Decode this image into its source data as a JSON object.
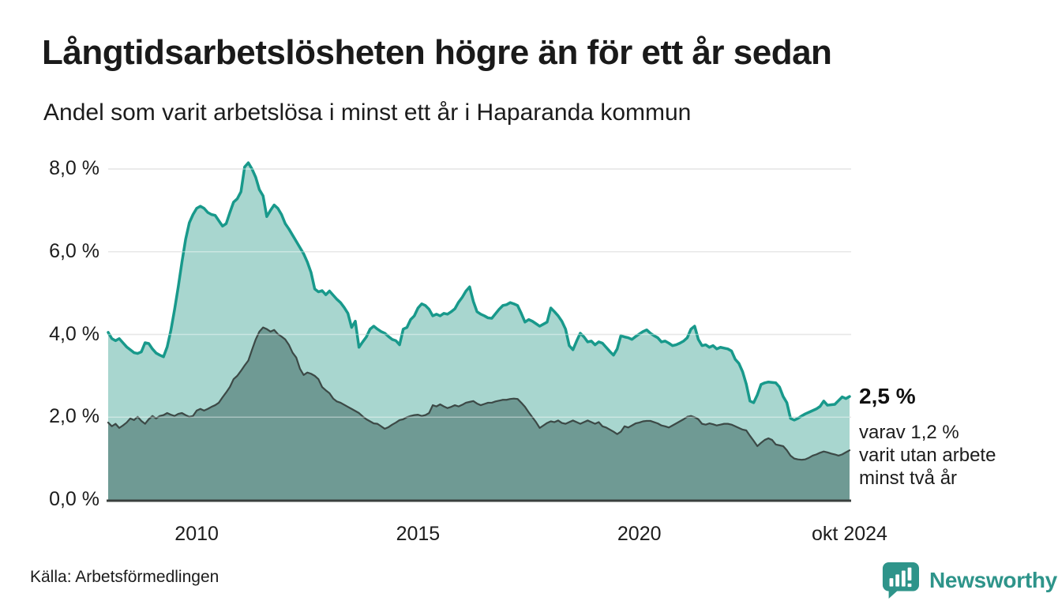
{
  "header": {
    "title": "Långtidsarbetslösheten högre än för ett år sedan",
    "subtitle": "Andel som varit arbetslösa i minst ett år i Haparanda kommun"
  },
  "chart_data": {
    "type": "area",
    "title": "Långtidsarbetslösheten högre än för ett år sedan",
    "unit": "percent",
    "frequency": "monthly",
    "x_start": "jan 2008",
    "x_end": "okt 2024",
    "ylim": [
      0,
      8.4
    ],
    "grid": true,
    "legend_position": "annotation-at-line-end",
    "y_axis": {
      "ticks": [
        {
          "label": "8,0 %",
          "value": 8
        },
        {
          "label": "6,0 %",
          "value": 6
        },
        {
          "label": "4,0 %",
          "value": 4
        },
        {
          "label": "2,0 %",
          "value": 2
        },
        {
          "label": "0,0 %",
          "value": 0
        }
      ]
    },
    "x_axis": {
      "ticks": [
        {
          "label": "2010",
          "month_index": 24
        },
        {
          "label": "2015",
          "month_index": 84
        },
        {
          "label": "2020",
          "month_index": 144
        },
        {
          "label": "okt 2024",
          "month_index": 201
        }
      ]
    },
    "colors": {
      "grid": "#d8d8d8",
      "grid_overlay": "rgba(255,255,255,0.4)",
      "baseline_axis": "#3a403e"
    },
    "series": [
      {
        "name": "arbetslösa minst ett år",
        "line_color": "#18998b",
        "fill_color": "#a8d6cf",
        "line_width": 3.5,
        "last_value_label": "2,5 %",
        "values": [
          4.05,
          3.9,
          3.85,
          3.9,
          3.8,
          3.7,
          3.63,
          3.56,
          3.54,
          3.58,
          3.8,
          3.78,
          3.65,
          3.55,
          3.5,
          3.46,
          3.7,
          4.1,
          4.6,
          5.15,
          5.75,
          6.3,
          6.7,
          6.9,
          7.05,
          7.1,
          7.05,
          6.95,
          6.9,
          6.88,
          6.75,
          6.62,
          6.68,
          6.95,
          7.2,
          7.28,
          7.45,
          8.05,
          8.15,
          8.0,
          7.8,
          7.5,
          7.35,
          6.85,
          7.0,
          7.13,
          7.05,
          6.9,
          6.68,
          6.55,
          6.4,
          6.25,
          6.1,
          5.95,
          5.75,
          5.5,
          5.1,
          5.03,
          5.06,
          4.96,
          5.05,
          4.95,
          4.85,
          4.77,
          4.65,
          4.51,
          4.17,
          4.32,
          3.69,
          3.82,
          3.94,
          4.13,
          4.2,
          4.13,
          4.07,
          4.03,
          3.95,
          3.88,
          3.85,
          3.75,
          4.13,
          4.17,
          4.36,
          4.45,
          4.64,
          4.74,
          4.7,
          4.61,
          4.45,
          4.49,
          4.45,
          4.51,
          4.49,
          4.55,
          4.62,
          4.78,
          4.9,
          5.05,
          5.15,
          4.8,
          4.55,
          4.49,
          4.45,
          4.4,
          4.39,
          4.5,
          4.61,
          4.7,
          4.72,
          4.77,
          4.74,
          4.7,
          4.51,
          4.3,
          4.36,
          4.32,
          4.26,
          4.2,
          4.25,
          4.3,
          4.64,
          4.55,
          4.45,
          4.32,
          4.13,
          3.73,
          3.63,
          3.84,
          4.03,
          3.94,
          3.82,
          3.84,
          3.75,
          3.82,
          3.79,
          3.69,
          3.59,
          3.5,
          3.65,
          3.97,
          3.94,
          3.92,
          3.88,
          3.95,
          4.01,
          4.07,
          4.11,
          4.03,
          3.97,
          3.92,
          3.82,
          3.84,
          3.79,
          3.73,
          3.75,
          3.79,
          3.84,
          3.92,
          4.13,
          4.2,
          3.88,
          3.73,
          3.75,
          3.69,
          3.73,
          3.65,
          3.69,
          3.67,
          3.65,
          3.6,
          3.4,
          3.3,
          3.1,
          2.8,
          2.39,
          2.35,
          2.54,
          2.79,
          2.83,
          2.85,
          2.84,
          2.83,
          2.73,
          2.5,
          2.35,
          1.97,
          1.93,
          1.97,
          2.03,
          2.08,
          2.12,
          2.16,
          2.2,
          2.26,
          2.39,
          2.29,
          2.3,
          2.31,
          2.4,
          2.49,
          2.45,
          2.5
        ]
      },
      {
        "name": "varav utan arbete minst två år",
        "line_color": "#3c4946",
        "fill_color": "#6f9a94",
        "line_width": 2.2,
        "last_value_label": "1,2 %",
        "values": [
          1.87,
          1.78,
          1.84,
          1.74,
          1.8,
          1.87,
          1.97,
          1.93,
          2.01,
          1.91,
          1.84,
          1.95,
          2.03,
          1.97,
          2.03,
          2.05,
          2.1,
          2.06,
          2.03,
          2.08,
          2.1,
          2.05,
          2.01,
          2.03,
          2.16,
          2.2,
          2.16,
          2.2,
          2.25,
          2.29,
          2.35,
          2.48,
          2.6,
          2.73,
          2.92,
          3.0,
          3.12,
          3.25,
          3.37,
          3.63,
          3.88,
          4.07,
          4.17,
          4.13,
          4.07,
          4.11,
          4.01,
          3.95,
          3.88,
          3.75,
          3.56,
          3.44,
          3.17,
          3.02,
          3.08,
          3.05,
          3.0,
          2.92,
          2.73,
          2.65,
          2.58,
          2.45,
          2.38,
          2.35,
          2.3,
          2.25,
          2.2,
          2.15,
          2.1,
          2.02,
          1.95,
          1.9,
          1.85,
          1.84,
          1.78,
          1.72,
          1.76,
          1.82,
          1.87,
          1.93,
          1.95,
          2.0,
          2.03,
          2.05,
          2.06,
          2.03,
          2.05,
          2.1,
          2.29,
          2.26,
          2.31,
          2.26,
          2.22,
          2.25,
          2.29,
          2.26,
          2.3,
          2.35,
          2.37,
          2.39,
          2.33,
          2.29,
          2.32,
          2.35,
          2.35,
          2.38,
          2.4,
          2.42,
          2.42,
          2.44,
          2.45,
          2.44,
          2.35,
          2.25,
          2.12,
          2.0,
          1.88,
          1.74,
          1.8,
          1.86,
          1.9,
          1.88,
          1.92,
          1.86,
          1.84,
          1.88,
          1.92,
          1.88,
          1.84,
          1.88,
          1.92,
          1.88,
          1.84,
          1.88,
          1.78,
          1.75,
          1.7,
          1.65,
          1.59,
          1.65,
          1.78,
          1.75,
          1.8,
          1.85,
          1.87,
          1.9,
          1.91,
          1.91,
          1.88,
          1.85,
          1.8,
          1.78,
          1.75,
          1.8,
          1.85,
          1.9,
          1.95,
          2.01,
          2.03,
          2.0,
          1.95,
          1.84,
          1.82,
          1.85,
          1.83,
          1.8,
          1.82,
          1.84,
          1.84,
          1.82,
          1.78,
          1.74,
          1.7,
          1.68,
          1.55,
          1.43,
          1.3,
          1.38,
          1.45,
          1.49,
          1.45,
          1.34,
          1.32,
          1.3,
          1.2,
          1.07,
          1.0,
          0.98,
          0.97,
          0.98,
          1.02,
          1.07,
          1.1,
          1.14,
          1.17,
          1.15,
          1.12,
          1.1,
          1.07,
          1.1,
          1.15,
          1.2
        ]
      }
    ]
  },
  "annotation": {
    "value_label": "2,5 %",
    "anchor_value": 2.5,
    "sub_lines": [
      "varav 1,2 %",
      "varit utan arbete",
      "minst två år"
    ]
  },
  "footer": {
    "source": "Källa: Arbetsförmedlingen",
    "brand": "Newsworthy",
    "brand_color": "#2e948a"
  }
}
